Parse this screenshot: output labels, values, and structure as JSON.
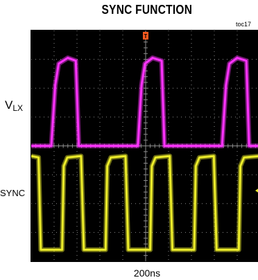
{
  "chart_data": {
    "type": "line",
    "title": "SYNC FUNCTION",
    "figure_id": "toc17",
    "xlabel": "200ns",
    "x_divisions": 10,
    "y_divisions": 8,
    "grid": true,
    "trigger_marker": "T",
    "series": [
      {
        "name": "VLX",
        "color": "#ff33ff",
        "y_low_div": 4.0,
        "y_high_div": 7.05,
        "points": [
          [
            0,
            4.0
          ],
          [
            0.88,
            4.0
          ],
          [
            1.05,
            6.1
          ],
          [
            1.2,
            6.85
          ],
          [
            1.6,
            7.05
          ],
          [
            1.95,
            6.95
          ],
          [
            2.08,
            4.0
          ],
          [
            4.66,
            4.0
          ],
          [
            4.82,
            6.1
          ],
          [
            4.97,
            6.85
          ],
          [
            5.3,
            7.05
          ],
          [
            5.7,
            6.95
          ],
          [
            5.82,
            4.0
          ],
          [
            8.34,
            4.0
          ],
          [
            8.51,
            6.1
          ],
          [
            8.66,
            6.85
          ],
          [
            9.0,
            7.05
          ],
          [
            9.4,
            6.95
          ],
          [
            9.52,
            4.0
          ],
          [
            10,
            4.0
          ]
        ]
      },
      {
        "name": "SYNC",
        "color": "#eded2a",
        "y_low_div": 0.4,
        "y_high_div": 3.65,
        "points": [
          [
            0,
            3.65
          ],
          [
            0.32,
            3.6
          ],
          [
            0.42,
            0.4
          ],
          [
            1.35,
            0.4
          ],
          [
            1.42,
            3.3
          ],
          [
            1.58,
            3.6
          ],
          [
            2.18,
            3.65
          ],
          [
            2.3,
            0.4
          ],
          [
            3.25,
            0.4
          ],
          [
            3.32,
            3.3
          ],
          [
            3.48,
            3.6
          ],
          [
            4.12,
            3.65
          ],
          [
            4.24,
            0.4
          ],
          [
            5.2,
            0.4
          ],
          [
            5.27,
            3.3
          ],
          [
            5.43,
            3.6
          ],
          [
            6.05,
            3.65
          ],
          [
            6.17,
            0.4
          ],
          [
            7.12,
            0.4
          ],
          [
            7.19,
            3.3
          ],
          [
            7.35,
            3.6
          ],
          [
            7.98,
            3.65
          ],
          [
            8.1,
            0.4
          ],
          [
            9.07,
            0.4
          ],
          [
            9.14,
            3.3
          ],
          [
            9.3,
            3.6
          ],
          [
            10,
            3.65
          ]
        ]
      }
    ],
    "colors": {
      "background": "#000000",
      "grid": "#8c8c8c",
      "trigger": "#ff5a1f"
    }
  }
}
